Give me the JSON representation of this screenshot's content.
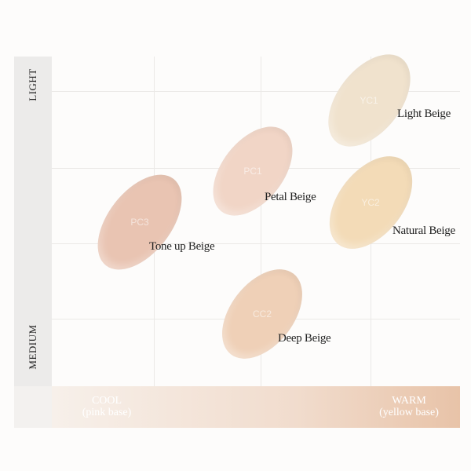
{
  "y_axis": {
    "top_label": "LIGHT",
    "bottom_label": "MEDIUM"
  },
  "x_axis": {
    "left_label": "COOL",
    "left_sub": "(pink base)",
    "right_label": "WARM",
    "right_sub": "(yellow base)"
  },
  "swatches": [
    {
      "code": "PC3",
      "name": "Tone up Beige",
      "color": "#e9c4b2"
    },
    {
      "code": "PC1",
      "name": "Petal Beige",
      "color": "#f1d5c6"
    },
    {
      "code": "YC1",
      "name": "Light Beige",
      "color": "#f0e2cd"
    },
    {
      "code": "YC2",
      "name": "Natural Beige",
      "color": "#f3dbb7"
    },
    {
      "code": "CC2",
      "name": "Deep Beige",
      "color": "#efd0b7"
    }
  ]
}
